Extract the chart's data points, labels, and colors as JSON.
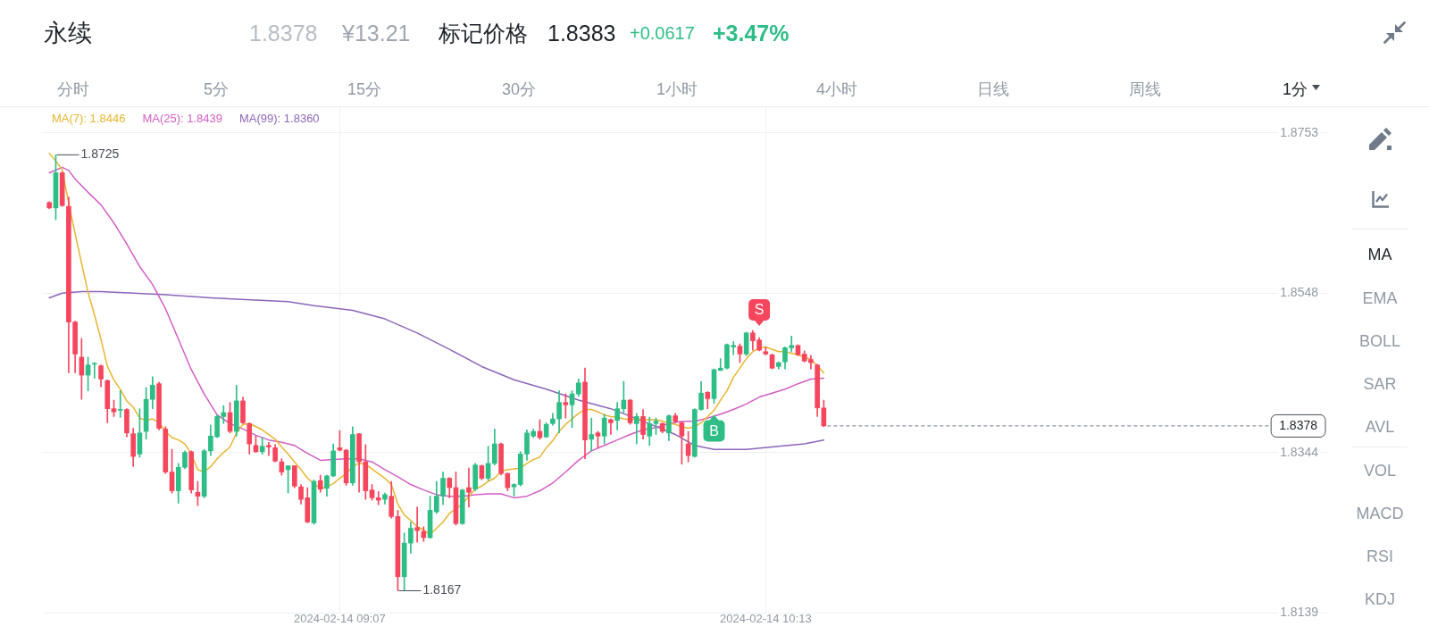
{
  "chart_data": {
    "type": "candlestick",
    "title": "永续",
    "x": [
      "2024-02-14T08:22",
      "2024-02-14T08:23",
      "2024-02-14T08:24",
      "2024-02-14T08:25",
      "2024-02-14T08:26",
      "2024-02-14T08:27",
      "2024-02-14T08:28",
      "2024-02-14T08:29",
      "2024-02-14T08:30",
      "2024-02-14T08:31",
      "2024-02-14T08:32",
      "2024-02-14T08:33",
      "2024-02-14T08:34",
      "2024-02-14T08:35",
      "2024-02-14T08:36",
      "2024-02-14T08:37",
      "2024-02-14T08:38",
      "2024-02-14T08:39",
      "2024-02-14T08:40",
      "2024-02-14T08:41",
      "2024-02-14T08:42",
      "2024-02-14T08:43",
      "2024-02-14T08:44",
      "2024-02-14T08:45",
      "2024-02-14T08:46",
      "2024-02-14T08:47",
      "2024-02-14T08:48",
      "2024-02-14T08:49",
      "2024-02-14T08:50",
      "2024-02-14T08:51",
      "2024-02-14T08:52",
      "2024-02-14T08:53",
      "2024-02-14T08:54",
      "2024-02-14T08:55",
      "2024-02-14T08:56",
      "2024-02-14T08:57",
      "2024-02-14T08:58",
      "2024-02-14T08:59",
      "2024-02-14T09:00",
      "2024-02-14T09:01",
      "2024-02-14T09:02",
      "2024-02-14T09:03",
      "2024-02-14T09:04",
      "2024-02-14T09:05",
      "2024-02-14T09:06",
      "2024-02-14T09:07",
      "2024-02-14T09:08",
      "2024-02-14T09:09",
      "2024-02-14T09:10",
      "2024-02-14T09:11",
      "2024-02-14T09:12",
      "2024-02-14T09:13",
      "2024-02-14T09:14",
      "2024-02-14T09:15",
      "2024-02-14T09:16",
      "2024-02-14T09:17",
      "2024-02-14T09:18",
      "2024-02-14T09:19",
      "2024-02-14T09:20",
      "2024-02-14T09:21",
      "2024-02-14T09:22",
      "2024-02-14T09:23",
      "2024-02-14T09:24",
      "2024-02-14T09:25",
      "2024-02-14T09:26",
      "2024-02-14T09:27",
      "2024-02-14T09:28",
      "2024-02-14T09:29",
      "2024-02-14T09:30",
      "2024-02-14T09:31",
      "2024-02-14T09:32",
      "2024-02-14T09:33",
      "2024-02-14T09:34",
      "2024-02-14T09:35",
      "2024-02-14T09:36",
      "2024-02-14T09:37",
      "2024-02-14T09:38",
      "2024-02-14T09:39",
      "2024-02-14T09:40",
      "2024-02-14T09:41",
      "2024-02-14T09:42",
      "2024-02-14T09:43",
      "2024-02-14T09:44",
      "2024-02-14T09:45",
      "2024-02-14T09:46",
      "2024-02-14T09:47",
      "2024-02-14T09:48",
      "2024-02-14T09:49",
      "2024-02-14T09:50",
      "2024-02-14T09:51",
      "2024-02-14T09:52",
      "2024-02-14T09:53",
      "2024-02-14T09:54",
      "2024-02-14T09:55",
      "2024-02-14T09:56",
      "2024-02-14T09:57",
      "2024-02-14T09:58",
      "2024-02-14T09:59",
      "2024-02-14T10:00",
      "2024-02-14T10:01",
      "2024-02-14T10:02",
      "2024-02-14T10:03",
      "2024-02-14T10:04",
      "2024-02-14T10:05",
      "2024-02-14T10:06",
      "2024-02-14T10:07",
      "2024-02-14T10:08",
      "2024-02-14T10:09",
      "2024-02-14T10:10",
      "2024-02-14T10:11",
      "2024-02-14T10:12",
      "2024-02-14T10:13",
      "2024-02-14T10:14",
      "2024-02-14T10:15",
      "2024-02-14T10:16",
      "2024-02-14T10:17",
      "2024-02-14T10:18",
      "2024-02-14T10:19",
      "2024-02-14T10:20",
      "2024-02-14T10:21",
      "2024-02-14T10:22"
    ],
    "ohlc": [
      [
        1.8664,
        1.8665,
        1.8656,
        1.8657
      ],
      [
        1.8657,
        1.8725,
        1.8642,
        1.8702
      ],
      [
        1.8702,
        1.8703,
        1.8659,
        1.866
      ],
      [
        1.8659,
        1.8671,
        1.8446,
        1.8511
      ],
      [
        1.8511,
        1.8512,
        1.8446,
        1.847
      ],
      [
        1.8466,
        1.849,
        1.8412,
        1.8443
      ],
      [
        1.8443,
        1.8466,
        1.8423,
        1.8456
      ],
      [
        1.8457,
        1.8459,
        1.8439,
        1.8458
      ],
      [
        1.8455,
        1.8456,
        1.8428,
        1.8438
      ],
      [
        1.8436,
        1.8437,
        1.8382,
        1.84
      ],
      [
        1.84,
        1.8411,
        1.839,
        1.8396
      ],
      [
        1.8398,
        1.8423,
        1.8389,
        1.8399
      ],
      [
        1.8399,
        1.84,
        1.8364,
        1.8369
      ],
      [
        1.8368,
        1.8375,
        1.8326,
        1.8339
      ],
      [
        1.8342,
        1.84,
        1.8338,
        1.8369
      ],
      [
        1.8371,
        1.8427,
        1.8361,
        1.8412
      ],
      [
        1.8412,
        1.8441,
        1.84,
        1.843
      ],
      [
        1.8432,
        1.8434,
        1.8373,
        1.8375
      ],
      [
        1.8374,
        1.8377,
        1.8317,
        1.8319
      ],
      [
        1.8319,
        1.8348,
        1.8292,
        1.8295
      ],
      [
        1.8295,
        1.833,
        1.8279,
        1.8325
      ],
      [
        1.8325,
        1.8346,
        1.8323,
        1.8344
      ],
      [
        1.8345,
        1.8346,
        1.8292,
        1.8296
      ],
      [
        1.8293,
        1.8307,
        1.8276,
        1.8288
      ],
      [
        1.8288,
        1.8348,
        1.8286,
        1.8346
      ],
      [
        1.8346,
        1.8379,
        1.834,
        1.8365
      ],
      [
        1.8364,
        1.8392,
        1.8363,
        1.839
      ],
      [
        1.839,
        1.8404,
        1.8381,
        1.8395
      ],
      [
        1.8395,
        1.8408,
        1.8369,
        1.8371
      ],
      [
        1.8371,
        1.843,
        1.8365,
        1.841
      ],
      [
        1.841,
        1.8415,
        1.8381,
        1.8382
      ],
      [
        1.8381,
        1.8382,
        1.8342,
        1.8355
      ],
      [
        1.8353,
        1.8365,
        1.8344,
        1.8345
      ],
      [
        1.8345,
        1.8363,
        1.8342,
        1.8352
      ],
      [
        1.8353,
        1.8357,
        1.834,
        1.8351
      ],
      [
        1.835,
        1.8354,
        1.8332,
        1.8333
      ],
      [
        1.8332,
        1.8336,
        1.8315,
        1.8319
      ],
      [
        1.8322,
        1.8327,
        1.8292,
        1.8327
      ],
      [
        1.8327,
        1.8327,
        1.8299,
        1.8301
      ],
      [
        1.83,
        1.8303,
        1.8278,
        1.8284
      ],
      [
        1.8286,
        1.8299,
        1.8254,
        1.8255
      ],
      [
        1.8254,
        1.8309,
        1.8252,
        1.8307
      ],
      [
        1.8308,
        1.8315,
        1.8293,
        1.8297
      ],
      [
        1.8298,
        1.8315,
        1.8288,
        1.8314
      ],
      [
        1.8314,
        1.8355,
        1.8313,
        1.8346
      ],
      [
        1.835,
        1.8372,
        1.8346,
        1.8347
      ],
      [
        1.8347,
        1.8348,
        1.8302,
        1.8305
      ],
      [
        1.8305,
        1.8377,
        1.8302,
        1.8367
      ],
      [
        1.8368,
        1.8368,
        1.8293,
        1.8332
      ],
      [
        1.8332,
        1.8354,
        1.8284,
        1.8295
      ],
      [
        1.8296,
        1.8303,
        1.8283,
        1.8286
      ],
      [
        1.8286,
        1.8294,
        1.8277,
        1.8283
      ],
      [
        1.8284,
        1.8292,
        1.8278,
        1.829
      ],
      [
        1.8288,
        1.8307,
        1.826,
        1.8262
      ],
      [
        1.8262,
        1.827,
        1.8167,
        1.8185
      ],
      [
        1.8185,
        1.8241,
        1.8168,
        1.8228
      ],
      [
        1.8228,
        1.8255,
        1.8215,
        1.8247
      ],
      [
        1.8248,
        1.8274,
        1.8229,
        1.8244
      ],
      [
        1.8243,
        1.8249,
        1.823,
        1.8235
      ],
      [
        1.8235,
        1.8288,
        1.8234,
        1.827
      ],
      [
        1.8268,
        1.8307,
        1.8266,
        1.8288
      ],
      [
        1.8288,
        1.8319,
        1.8277,
        1.8311
      ],
      [
        1.8311,
        1.8312,
        1.8286,
        1.8299
      ],
      [
        1.8299,
        1.8319,
        1.8251,
        1.8253
      ],
      [
        1.8253,
        1.8297,
        1.8252,
        1.8296
      ],
      [
        1.8299,
        1.8324,
        1.8274,
        1.8293
      ],
      [
        1.8297,
        1.833,
        1.8295,
        1.8328
      ],
      [
        1.8327,
        1.8328,
        1.8309,
        1.8311
      ],
      [
        1.8311,
        1.8352,
        1.8308,
        1.833
      ],
      [
        1.833,
        1.8374,
        1.8328,
        1.8355
      ],
      [
        1.8355,
        1.8356,
        1.8315,
        1.8317
      ],
      [
        1.8317,
        1.8318,
        1.8295,
        1.8299
      ],
      [
        1.83,
        1.8304,
        1.8288,
        1.8303
      ],
      [
        1.8303,
        1.8345,
        1.8301,
        1.8342
      ],
      [
        1.8342,
        1.8373,
        1.8334,
        1.8369
      ],
      [
        1.8365,
        1.8374,
        1.8363,
        1.8371
      ],
      [
        1.8371,
        1.8386,
        1.8361,
        1.8363
      ],
      [
        1.8364,
        1.8382,
        1.8363,
        1.838
      ],
      [
        1.8381,
        1.8394,
        1.8379,
        1.8387
      ],
      [
        1.8387,
        1.8423,
        1.8369,
        1.8408
      ],
      [
        1.8408,
        1.8419,
        1.8388,
        1.8405
      ],
      [
        1.8405,
        1.8423,
        1.8376,
        1.8419
      ],
      [
        1.8419,
        1.8438,
        1.8416,
        1.8433
      ],
      [
        1.8434,
        1.8452,
        1.8336,
        1.836
      ],
      [
        1.8361,
        1.8388,
        1.8346,
        1.8367
      ],
      [
        1.8369,
        1.8371,
        1.835,
        1.8365
      ],
      [
        1.8365,
        1.8393,
        1.8355,
        1.8388
      ],
      [
        1.8386,
        1.8387,
        1.8367,
        1.8382
      ],
      [
        1.8385,
        1.8408,
        1.8373,
        1.84
      ],
      [
        1.84,
        1.8435,
        1.8395,
        1.8411
      ],
      [
        1.8411,
        1.8412,
        1.838,
        1.8382
      ],
      [
        1.8381,
        1.8394,
        1.8355,
        1.839
      ],
      [
        1.839,
        1.8399,
        1.8361,
        1.8367
      ],
      [
        1.8365,
        1.8389,
        1.8353,
        1.8381
      ],
      [
        1.8381,
        1.8388,
        1.8367,
        1.8384
      ],
      [
        1.8381,
        1.8382,
        1.8369,
        1.8371
      ],
      [
        1.8369,
        1.8392,
        1.8359,
        1.8391
      ],
      [
        1.8391,
        1.8394,
        1.8382,
        1.8384
      ],
      [
        1.8382,
        1.8383,
        1.8329,
        1.8365
      ],
      [
        1.8355,
        1.8371,
        1.8332,
        1.834
      ],
      [
        1.8339,
        1.84,
        1.8338,
        1.8399
      ],
      [
        1.8399,
        1.8435,
        1.8398,
        1.842
      ],
      [
        1.8421,
        1.8422,
        1.84,
        1.8413
      ],
      [
        1.8413,
        1.8451,
        1.8407,
        1.845
      ],
      [
        1.8449,
        1.8464,
        1.8449,
        1.8452
      ],
      [
        1.8452,
        1.8483,
        1.8451,
        1.8482
      ],
      [
        1.8479,
        1.8486,
        1.8469,
        1.8481
      ],
      [
        1.848,
        1.8483,
        1.8459,
        1.847
      ],
      [
        1.847,
        1.8498,
        1.8468,
        1.8497
      ],
      [
        1.8497,
        1.85,
        1.8475,
        1.8487
      ],
      [
        1.8488,
        1.8491,
        1.8474,
        1.8475
      ],
      [
        1.8473,
        1.8479,
        1.8469,
        1.847
      ],
      [
        1.8469,
        1.847,
        1.8451,
        1.8452
      ],
      [
        1.8454,
        1.846,
        1.8451,
        1.8459
      ],
      [
        1.846,
        1.8479,
        1.8451,
        1.8478
      ],
      [
        1.8478,
        1.8493,
        1.8473,
        1.8481
      ],
      [
        1.8481,
        1.8482,
        1.8468,
        1.8469
      ],
      [
        1.847,
        1.8474,
        1.846,
        1.8461
      ],
      [
        1.8463,
        1.8468,
        1.8451,
        1.8459
      ],
      [
        1.8456,
        1.8457,
        1.839,
        1.8401
      ],
      [
        1.8401,
        1.8411,
        1.8377,
        1.8378
      ]
    ],
    "colors": [
      "#f6465d",
      "#2ebd85",
      "#f6465d",
      "#f6465d",
      "#f6465d",
      "#f6465d",
      "#2ebd85",
      "#2ebd85",
      "#f6465d",
      "#f6465d",
      "#f6465d",
      "#2ebd85",
      "#f6465d",
      "#f6465d",
      "#2ebd85",
      "#2ebd85",
      "#2ebd85",
      "#f6465d",
      "#f6465d",
      "#f6465d",
      "#2ebd85",
      "#2ebd85",
      "#f6465d",
      "#f6465d",
      "#2ebd85",
      "#2ebd85",
      "#2ebd85",
      "#2ebd85",
      "#f6465d",
      "#2ebd85",
      "#f6465d",
      "#f6465d",
      "#f6465d",
      "#2ebd85",
      "#f6465d",
      "#f6465d",
      "#f6465d",
      "#2ebd85",
      "#f6465d",
      "#f6465d",
      "#f6465d",
      "#2ebd85",
      "#f6465d",
      "#2ebd85",
      "#2ebd85",
      "#f6465d",
      "#f6465d",
      "#2ebd85",
      "#f6465d",
      "#f6465d",
      "#f6465d",
      "#f6465d",
      "#2ebd85",
      "#f6465d",
      "#f6465d",
      "#2ebd85",
      "#2ebd85",
      "#f6465d",
      "#f6465d",
      "#2ebd85",
      "#2ebd85",
      "#2ebd85",
      "#f6465d",
      "#f6465d",
      "#2ebd85",
      "#f6465d",
      "#2ebd85",
      "#f6465d",
      "#2ebd85",
      "#2ebd85",
      "#f6465d",
      "#f6465d",
      "#2ebd85",
      "#2ebd85",
      "#2ebd85",
      "#2ebd85",
      "#f6465d",
      "#2ebd85",
      "#2ebd85",
      "#2ebd85",
      "#f6465d",
      "#2ebd85",
      "#2ebd85",
      "#f6465d",
      "#2ebd85",
      "#f6465d",
      "#2ebd85",
      "#f6465d",
      "#2ebd85",
      "#2ebd85",
      "#f6465d",
      "#2ebd85",
      "#f6465d",
      "#2ebd85",
      "#2ebd85",
      "#f6465d",
      "#2ebd85",
      "#f6465d",
      "#f6465d",
      "#f6465d",
      "#2ebd85",
      "#2ebd85",
      "#f6465d",
      "#2ebd85",
      "#2ebd85",
      "#2ebd85",
      "#2ebd85",
      "#f6465d",
      "#2ebd85",
      "#f6465d",
      "#f6465d",
      "#f6465d",
      "#f6465d",
      "#2ebd85",
      "#2ebd85",
      "#2ebd85",
      "#f6465d",
      "#f6465d",
      "#f6465d",
      "#f6465d",
      "#f6465d"
    ],
    "series": [
      {
        "name": "MA(7): 1.8446",
        "type": "line",
        "color": "#e8b52f",
        "values": [
          1.8727,
          1.8717,
          1.8706,
          1.8663,
          1.8624,
          1.8586,
          1.8549,
          1.852,
          1.8489,
          1.8454,
          1.8437,
          1.8425,
          1.841,
          1.8402,
          1.8388,
          1.8385,
          1.8387,
          1.8382,
          1.8371,
          1.8363,
          1.836,
          1.8355,
          1.8342,
          1.8322,
          1.8319,
          1.8326,
          1.8336,
          1.8344,
          1.8351,
          1.8369,
          1.838,
          1.8381,
          1.8377,
          1.8373,
          1.8367,
          1.8361,
          1.8351,
          1.8342,
          1.8332,
          1.8322,
          1.8311,
          1.8304,
          1.8298,
          1.83,
          1.8304,
          1.8311,
          1.8317,
          1.8326,
          1.833,
          1.8329,
          1.8323,
          1.8317,
          1.8311,
          1.8303,
          1.8278,
          1.8264,
          1.8257,
          1.8249,
          1.8245,
          1.8239,
          1.8247,
          1.8255,
          1.8266,
          1.8272,
          1.8278,
          1.8288,
          1.8297,
          1.8301,
          1.8307,
          1.8311,
          1.832,
          1.8322,
          1.8323,
          1.8324,
          1.833,
          1.8335,
          1.8338,
          1.835,
          1.8359,
          1.8371,
          1.838,
          1.8387,
          1.8394,
          1.8399,
          1.8399,
          1.8396,
          1.8392,
          1.839,
          1.8389,
          1.8387,
          1.8386,
          1.8387,
          1.8386,
          1.8386,
          1.8386,
          1.8384,
          1.8382,
          1.838,
          1.8377,
          1.8375,
          1.8377,
          1.8382,
          1.839,
          1.8398,
          1.8411,
          1.8423,
          1.844,
          1.8452,
          1.8464,
          1.8473,
          1.8478,
          1.8479,
          1.8476,
          1.8473,
          1.8473,
          1.8471,
          1.8469,
          1.8466,
          1.8463,
          1.8455,
          1.8446
        ]
      },
      {
        "name": "MA(25): 1.8439",
        "type": "line",
        "color": "#d45ec5",
        "x": [
          "2024-02-14T08:22",
          "2024-02-14T08:24",
          "2024-02-14T08:25",
          "2024-02-14T08:26",
          "2024-02-14T08:28",
          "2024-02-14T08:30",
          "2024-02-14T08:32",
          "2024-02-14T08:34",
          "2024-02-14T08:36",
          "2024-02-14T08:38",
          "2024-02-14T08:40",
          "2024-02-14T08:42",
          "2024-02-14T08:44",
          "2024-02-14T08:46",
          "2024-02-14T08:48",
          "2024-02-14T08:50",
          "2024-02-14T08:52",
          "2024-02-14T08:54",
          "2024-02-14T08:56",
          "2024-02-14T08:58",
          "2024-02-14T09:00",
          "2024-02-14T09:02",
          "2024-02-14T09:04",
          "2024-02-14T09:06",
          "2024-02-14T09:08",
          "2024-02-14T09:10",
          "2024-02-14T09:12",
          "2024-02-14T09:14",
          "2024-02-14T09:16",
          "2024-02-14T09:18",
          "2024-02-14T09:20",
          "2024-02-14T09:22",
          "2024-02-14T09:24",
          "2024-02-14T09:26",
          "2024-02-14T09:28",
          "2024-02-14T09:30",
          "2024-02-14T09:32",
          "2024-02-14T09:34",
          "2024-02-14T09:36",
          "2024-02-14T09:38",
          "2024-02-14T09:40",
          "2024-02-14T09:42",
          "2024-02-14T09:44",
          "2024-02-14T09:46",
          "2024-02-14T09:48",
          "2024-02-14T09:50",
          "2024-02-14T09:52",
          "2024-02-14T09:54",
          "2024-02-14T09:56",
          "2024-02-14T09:58",
          "2024-02-14T10:00",
          "2024-02-14T10:02",
          "2024-02-14T10:04",
          "2024-02-14T10:06",
          "2024-02-14T10:08",
          "2024-02-14T10:10",
          "2024-02-14T10:12",
          "2024-02-14T10:14",
          "2024-02-14T10:16",
          "2024-02-14T10:18",
          "2024-02-14T10:20",
          "2024-02-14T10:22"
        ],
        "values": [
          1.8702,
          1.8709,
          1.8705,
          1.8694,
          1.8677,
          1.8661,
          1.8638,
          1.8611,
          1.8582,
          1.8559,
          1.8528,
          1.8489,
          1.845,
          1.8419,
          1.8392,
          1.8381,
          1.8374,
          1.8366,
          1.836,
          1.8357,
          1.8353,
          1.8343,
          1.8334,
          1.8335,
          1.8336,
          1.8336,
          1.8332,
          1.8322,
          1.8313,
          1.8303,
          1.8296,
          1.829,
          1.8288,
          1.8288,
          1.829,
          1.8291,
          1.8291,
          1.8286,
          1.8288,
          1.8295,
          1.8305,
          1.8319,
          1.8334,
          1.8346,
          1.8353,
          1.836,
          1.8367,
          1.8373,
          1.8376,
          1.8381,
          1.8384,
          1.8384,
          1.8388,
          1.8393,
          1.8399,
          1.8406,
          1.8415,
          1.842,
          1.8425,
          1.8432,
          1.8438,
          1.8439
        ]
      },
      {
        "name": "MA(99): 1.8360",
        "type": "line",
        "color": "#8d66bb",
        "x": [
          "2024-02-14T08:22",
          "2024-02-14T08:24",
          "2024-02-14T08:27",
          "2024-02-14T08:30",
          "2024-02-14T08:35",
          "2024-02-14T08:40",
          "2024-02-14T08:47",
          "2024-02-14T08:54",
          "2024-02-14T08:59",
          "2024-02-14T09:03",
          "2024-02-14T09:09",
          "2024-02-14T09:14",
          "2024-02-14T09:19",
          "2024-02-14T09:24",
          "2024-02-14T09:29",
          "2024-02-14T09:34",
          "2024-02-14T09:39",
          "2024-02-14T09:44",
          "2024-02-14T09:49",
          "2024-02-14T09:54",
          "2024-02-14T09:59",
          "2024-02-14T10:02",
          "2024-02-14T10:05",
          "2024-02-14T10:10",
          "2024-02-14T10:15",
          "2024-02-14T10:19",
          "2024-02-14T10:22"
        ],
        "values": [
          1.8542,
          1.8548,
          1.855,
          1.855,
          1.8548,
          1.8546,
          1.8542,
          1.8539,
          1.8537,
          1.8532,
          1.8526,
          1.8515,
          1.8497,
          1.8476,
          1.8454,
          1.8437,
          1.8425,
          1.8411,
          1.84,
          1.8384,
          1.8367,
          1.8353,
          1.8348,
          1.8348,
          1.8352,
          1.8355,
          1.836
        ]
      }
    ],
    "xlim": [
      "2024-02-14T08:21",
      "2024-02-14T11:40"
    ],
    "xticks": [
      {
        "value": "2024-02-14T09:07",
        "label": "2024-02-14 09:07"
      },
      {
        "value": "2024-02-14T10:13",
        "label": "2024-02-14 10:13"
      }
    ],
    "ylim": [
      1.8139,
      1.8786
    ],
    "yticks": [
      1.8139,
      1.8344,
      1.8548,
      1.8753
    ],
    "grid": true,
    "legend": "top left",
    "ref_lines": [
      {
        "axis": "y",
        "value": 1.8378,
        "label": "1.8378",
        "color": "#707a8a",
        "line_style": "dashed"
      }
    ],
    "annotations": [
      "1.8378",
      "¥13.21",
      "标记价格",
      "1.8383",
      "+0.0617",
      "+3.47%",
      "分时",
      "5分",
      "15分",
      "30分",
      "1小时",
      "4小时",
      "日线",
      "周线",
      "1分",
      "MA",
      "EMA",
      "BOLL",
      "SAR",
      "AVL",
      "VOL",
      "MACD",
      "RSI",
      "KDJ",
      {
        "text": "1.8725",
        "x": "2024-02-14T08:23",
        "y": 1.8725
      },
      {
        "text": "1.8167",
        "x": "2024-02-14T09:16",
        "y": 1.8167
      },
      {
        "text": "B",
        "x": "2024-02-14T10:05",
        "y": 1.8407
      },
      {
        "text": "S",
        "x": "2024-02-14T10:12",
        "y": 1.8491
      }
    ]
  }
}
